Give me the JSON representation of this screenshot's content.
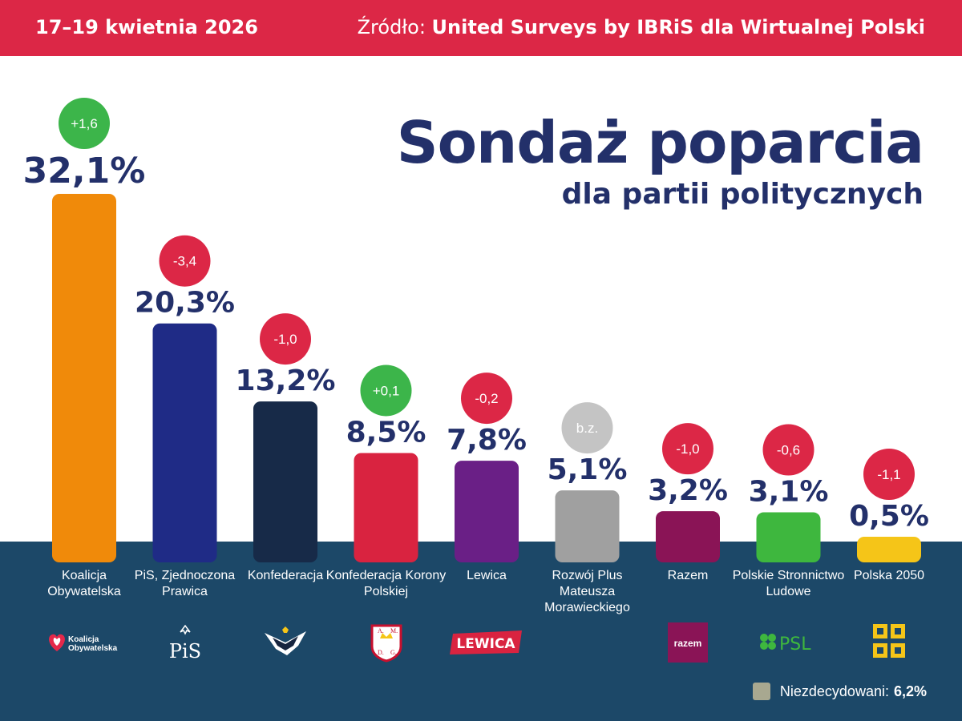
{
  "header": {
    "date": "17–19 kwietnia 2026",
    "source_label": "Źródło:",
    "source_value": "United Surveys by IBRiS dla Wirtualnej Polski"
  },
  "title": "Sondaż poparcia",
  "subtitle": "dla partii politycznych",
  "colors": {
    "header_bg": "#dc2746",
    "title": "#23306a",
    "bottom_bg": "#1c4868",
    "change_up": "#3cb54a",
    "change_down": "#dc2746",
    "change_none": "#c4c4c4"
  },
  "chart_data": {
    "type": "bar",
    "unit": "%",
    "ylim": [
      0,
      32.1
    ],
    "categories": [
      "Koalicja Obywatelska",
      "PiS, Zjednoczona Prawica",
      "Konfederacja",
      "Konfederacja Korony Polskiej",
      "Lewica",
      "Rozwój Plus Mateusza Morawieckiego",
      "Razem",
      "Polskie Stronnictwo Ludowe",
      "Polska 2050"
    ],
    "values": [
      32.1,
      20.3,
      13.2,
      8.5,
      7.8,
      5.1,
      3.2,
      3.1,
      0.5
    ],
    "value_labels": [
      "32,1%",
      "20,3%",
      "13,2%",
      "8,5%",
      "7,8%",
      "5,1%",
      "3,2%",
      "3,1%",
      "0,5%"
    ],
    "changes": [
      "+1,6",
      "-3,4",
      "-1,0",
      "+0,1",
      "-0,2",
      "b.z.",
      "-1,0",
      "-0,6",
      "-1,1"
    ],
    "change_direction": [
      "up",
      "down",
      "down",
      "up",
      "down",
      "none",
      "down",
      "down",
      "down"
    ],
    "bar_colors": [
      "#f08a0a",
      "#1f2b86",
      "#172a48",
      "#d92340",
      "#6a1f86",
      "#a0a0a0",
      "#8a1456",
      "#3eb73e",
      "#f5c518"
    ],
    "grid": false,
    "undecided_label": "Niezdecydowani:",
    "undecided_value": "6,2%",
    "undecided_color": "#a8a890"
  },
  "logos": [
    {
      "icon": "koalicja-obywatelska-logo",
      "text": "Koalicja Obywatelska"
    },
    {
      "icon": "pis-logo",
      "text": "PiS"
    },
    {
      "icon": "konfederacja-eagle-logo",
      "text": ""
    },
    {
      "icon": "korona-crest-logo",
      "text": ""
    },
    {
      "icon": "lewica-logo",
      "text": "LEWICA"
    },
    {
      "icon": "none",
      "text": ""
    },
    {
      "icon": "razem-logo",
      "text": "razem"
    },
    {
      "icon": "psl-clover-logo",
      "text": "PSL"
    },
    {
      "icon": "polska-2050-logo",
      "text": ""
    }
  ]
}
